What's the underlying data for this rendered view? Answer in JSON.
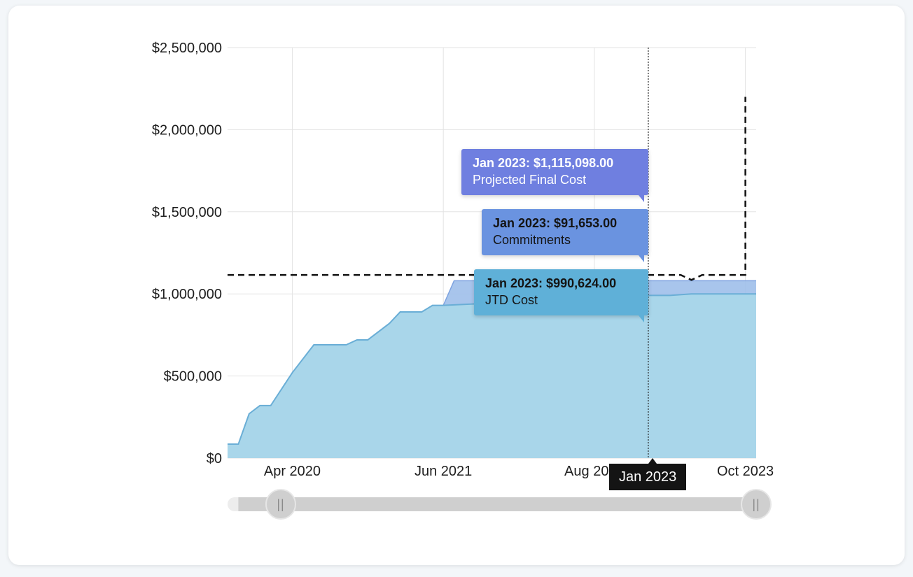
{
  "chart_data": {
    "type": "area",
    "x_axis": {
      "type": "time",
      "ticks": [
        "Apr 2020",
        "Jun 2021",
        "Aug 2022",
        "Oct 2023"
      ],
      "tick_dates": [
        "2020-04",
        "2021-06",
        "2022-08",
        "2023-10"
      ],
      "range": [
        "2019-10",
        "2023-11"
      ]
    },
    "y_axis": {
      "ticks": [
        "$0",
        "$500,000",
        "$1,000,000",
        "$1,500,000",
        "$2,000,000",
        "$2,500,000"
      ],
      "tick_values": [
        0,
        500000,
        1000000,
        1500000,
        2000000,
        2500000
      ],
      "ylim": [
        0,
        2500000
      ]
    },
    "grid": true,
    "series": [
      {
        "name": "JTD Cost",
        "color": "#a9d6ea",
        "line_color": "#6aaed6",
        "points": [
          [
            "2019-10",
            85000
          ],
          [
            "2019-11",
            85000
          ],
          [
            "2019-12",
            270000
          ],
          [
            "2020-01",
            320000
          ],
          [
            "2020-02",
            320000
          ],
          [
            "2020-04",
            520000
          ],
          [
            "2020-06",
            690000
          ],
          [
            "2020-09",
            690000
          ],
          [
            "2020-10",
            720000
          ],
          [
            "2020-11",
            720000
          ],
          [
            "2021-01",
            820000
          ],
          [
            "2021-02",
            890000
          ],
          [
            "2021-04",
            890000
          ],
          [
            "2021-05",
            930000
          ],
          [
            "2021-06",
            930000
          ],
          [
            "2022-12",
            985000
          ],
          [
            "2023-01",
            990624
          ],
          [
            "2023-03",
            990624
          ],
          [
            "2023-05",
            1000000
          ],
          [
            "2023-11",
            1000000
          ]
        ]
      },
      {
        "name": "Commitments",
        "color": "#9fbfea",
        "line_color": "#7ea3e0",
        "points": [
          [
            "2021-06",
            930000
          ],
          [
            "2021-07",
            1080000
          ],
          [
            "2023-11",
            1080000
          ]
        ]
      },
      {
        "name": "Projected Final Cost",
        "color": "#111111",
        "style": "dashed",
        "points": [
          [
            "2019-10",
            1115098
          ],
          [
            "2023-01",
            1115098
          ],
          [
            "2023-04",
            1115098
          ],
          [
            "2023-05",
            1085000
          ],
          [
            "2023-06",
            1115098
          ],
          [
            "2023-10",
            1115098
          ],
          [
            "2023-10",
            2200000
          ]
        ]
      }
    ],
    "hover": {
      "date": "2023-01",
      "label": "Jan 2023",
      "tooltips": [
        {
          "title": "Jan 2023: $1,115,098.00",
          "series": "Projected Final Cost",
          "bg": "#6f7fe0",
          "text_color": "#ffffff"
        },
        {
          "title": "Jan 2023: $91,653.00",
          "series": "Commitments",
          "bg": "#6a93e0",
          "text_color": "#141414"
        },
        {
          "title": "Jan 2023: $990,624.00",
          "series": "JTD Cost",
          "bg": "#5fb0d8",
          "text_color": "#141414"
        }
      ]
    },
    "range_slider": {
      "start": "2019-11",
      "end": "2023-11"
    }
  }
}
